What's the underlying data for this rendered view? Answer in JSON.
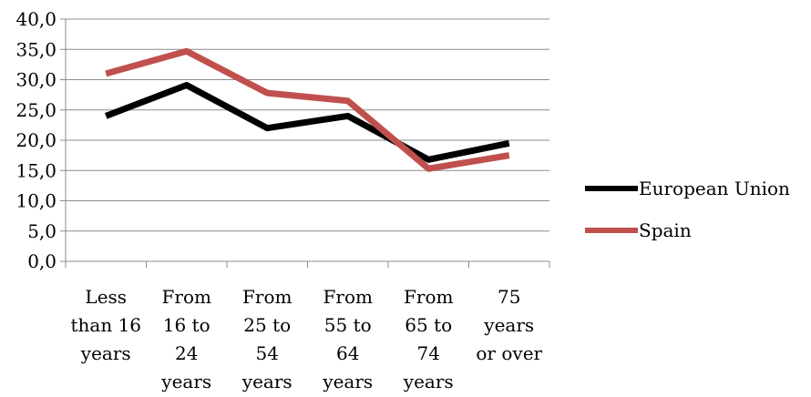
{
  "chart_data": {
    "type": "line",
    "categories": [
      [
        "Less",
        "than 16",
        "years"
      ],
      [
        "From",
        "16 to",
        "24",
        "years"
      ],
      [
        "From",
        "25 to",
        "54",
        "years"
      ],
      [
        "From",
        "55 to",
        "64",
        "years"
      ],
      [
        "From",
        "65 to",
        "74",
        "years"
      ],
      [
        "75",
        "years",
        "or over"
      ]
    ],
    "series": [
      {
        "name": "European Union",
        "values": [
          24.0,
          29.1,
          22.0,
          24.0,
          16.8,
          19.5
        ],
        "color": "#000000"
      },
      {
        "name": "Spain",
        "values": [
          31.0,
          34.7,
          27.8,
          26.5,
          15.3,
          17.5
        ],
        "color": "#c0504d"
      }
    ],
    "ylim": [
      0,
      40
    ],
    "yticks": [
      "0,0",
      "5,0",
      "10,0",
      "15,0",
      "20,0",
      "25,0",
      "30,0",
      "35,0",
      "40,0"
    ],
    "grid": true,
    "legend_position": "right",
    "title": "",
    "xlabel": "",
    "ylabel": ""
  }
}
